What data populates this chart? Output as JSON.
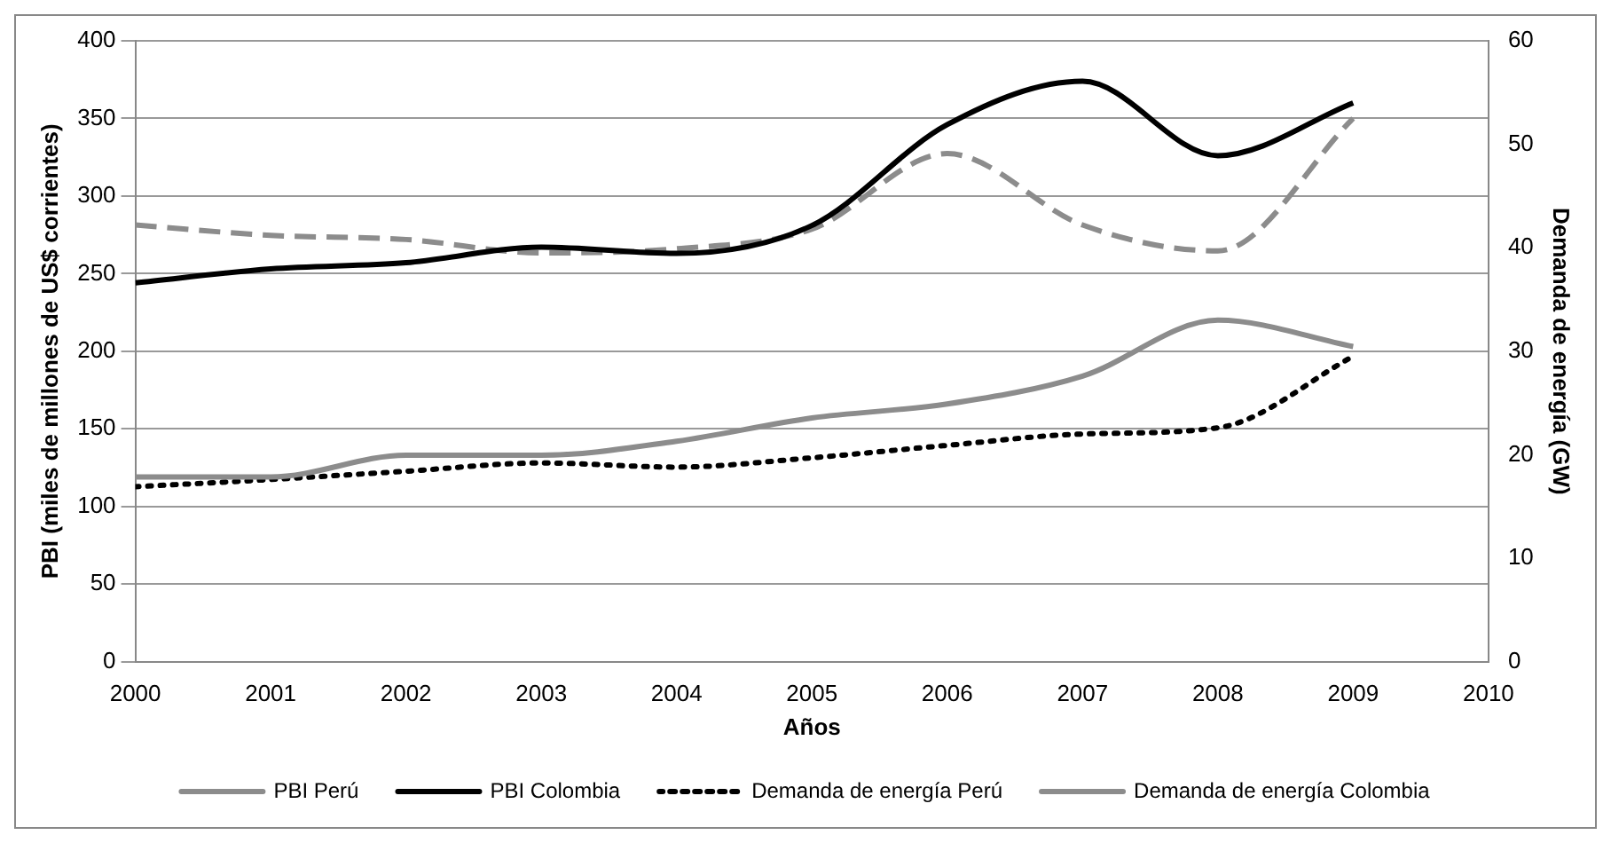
{
  "chart_data": {
    "type": "line",
    "xlabel": "Años",
    "ylabel": "PBI (miles de millones de US$ corrientes)",
    "y2label": "Demanda de energía (GW)",
    "x": [
      2000,
      2001,
      2002,
      2003,
      2004,
      2005,
      2006,
      2007,
      2008,
      2009
    ],
    "xlim": [
      2000,
      2010
    ],
    "xticks": [
      2000,
      2001,
      2002,
      2003,
      2004,
      2005,
      2006,
      2007,
      2008,
      2009,
      2010
    ],
    "ylim": [
      0,
      400
    ],
    "yticks": [
      0,
      50,
      100,
      150,
      200,
      250,
      300,
      350,
      400
    ],
    "y2lim": [
      0,
      60
    ],
    "y2ticks": [
      0,
      10,
      20,
      30,
      40,
      50,
      60
    ],
    "grid": "y",
    "legend": "bottom",
    "marker": "none",
    "series": [
      {
        "name": "PBI Perú",
        "color": "#8c8c8c",
        "line_style": "solid",
        "values": [
          119,
          119,
          133,
          133,
          142,
          157,
          166,
          184,
          220,
          203
        ]
      },
      {
        "name": "PBI Colombia",
        "color": "#000000",
        "line_style": "solid",
        "values": [
          244,
          253,
          257,
          267,
          263,
          281,
          346,
          374,
          326,
          360
        ]
      },
      {
        "name": "Demanda de energía Perú",
        "color": "#000000",
        "line_style": "dotted",
        "axis": "y2",
        "values": [
          16.9,
          17.6,
          18.4,
          19.2,
          18.8,
          19.7,
          20.9,
          22.0,
          22.6,
          29.5
        ]
      },
      {
        "name": "Demanda de energía Colombia",
        "color": "#8c8c8c",
        "line_style": "dashed",
        "axis": "y2",
        "values": [
          42.2,
          41.2,
          40.8,
          39.5,
          39.9,
          41.8,
          49.1,
          42.2,
          39.7,
          52.5
        ]
      }
    ]
  }
}
